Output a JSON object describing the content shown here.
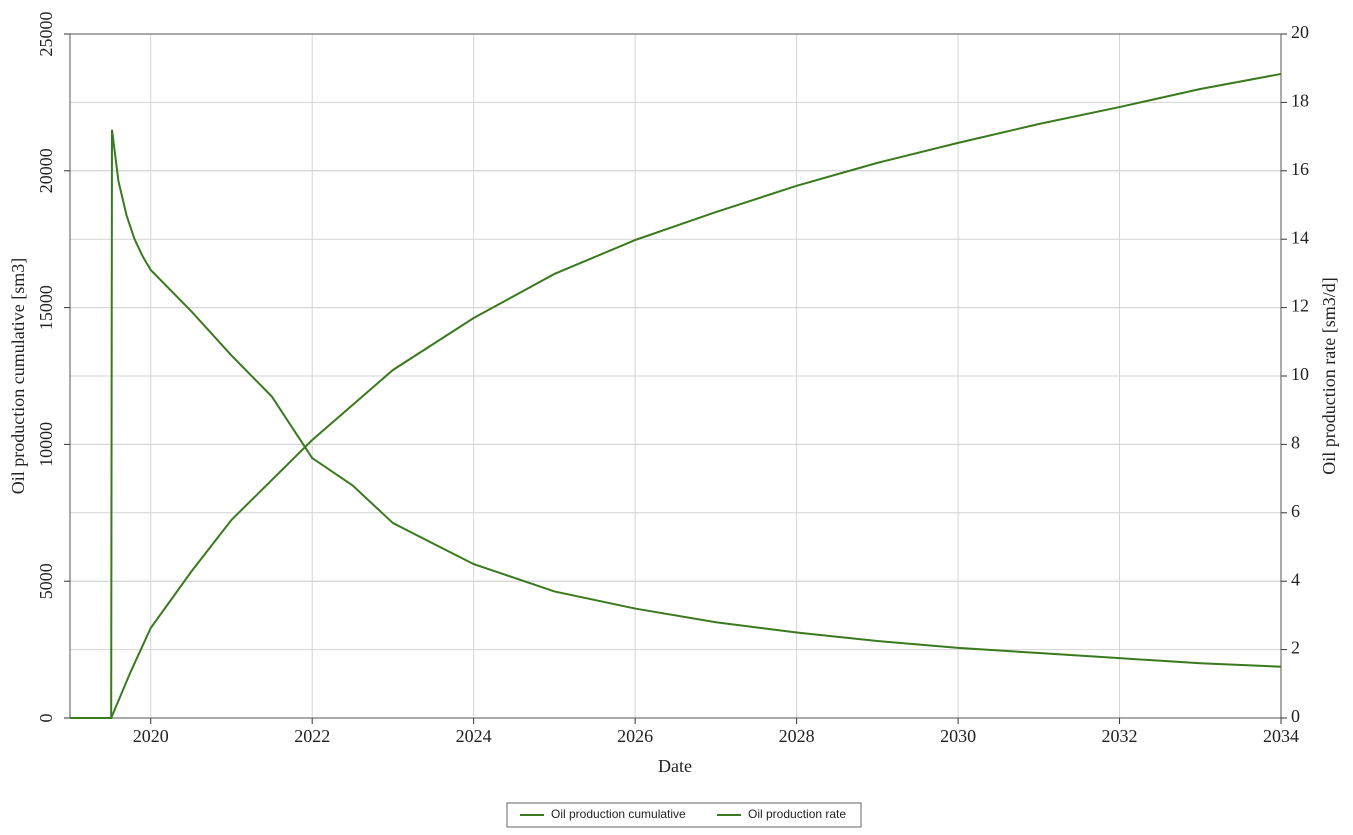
{
  "chart_data": {
    "type": "line",
    "x_label": "Date",
    "y_label": "Oil production cumulative [sm3]",
    "y2_label": "Oil production rate [sm3/d]",
    "xlim": [
      2019,
      2034
    ],
    "xticks": [
      2020,
      2022,
      2024,
      2026,
      2028,
      2030,
      2032,
      2034
    ],
    "ylim": [
      0,
      25000
    ],
    "yticks": [
      0,
      5000,
      10000,
      15000,
      20000,
      25000
    ],
    "y2lim": [
      0,
      20
    ],
    "y2ticks": [
      0,
      2,
      4,
      6,
      8,
      10,
      12,
      14,
      16,
      18,
      20
    ],
    "grid": true,
    "legend": "bottom",
    "series": [
      {
        "name": "Oil production cumulative",
        "color": "#3a7a1e",
        "axis": "y",
        "x": [
          2019,
          2019.51,
          2019.75,
          2020,
          2020.5,
          2021,
          2022,
          2023,
          2024,
          2025,
          2026,
          2027,
          2028,
          2029,
          2030,
          2031,
          2032,
          2033,
          2034
        ],
        "values": [
          0,
          0,
          1680,
          3290,
          5340,
          7240,
          10160,
          12720,
          14620,
          16230,
          17470,
          18490,
          19450,
          20290,
          21020,
          21710,
          22330,
          22990,
          23540
        ]
      },
      {
        "name": "Oil production rate",
        "color": "#3a7a1e",
        "axis": "y2",
        "x": [
          2019,
          2019.51,
          2019.52,
          2019.6,
          2019.7,
          2019.8,
          2019.9,
          2020,
          2020.5,
          2021,
          2021.5,
          2022,
          2022.5,
          2023,
          2023.5,
          2024,
          2025,
          2026,
          2027,
          2028,
          2029,
          2030,
          2031,
          2032,
          2033,
          2034
        ],
        "values": [
          0,
          0,
          17.2,
          15.7,
          14.7,
          14.0,
          13.5,
          13.1,
          11.9,
          10.6,
          9.4,
          7.6,
          6.8,
          5.7,
          5.1,
          4.5,
          3.7,
          3.2,
          2.8,
          2.5,
          2.25,
          2.05,
          1.9,
          1.75,
          1.6,
          1.5
        ]
      }
    ]
  }
}
